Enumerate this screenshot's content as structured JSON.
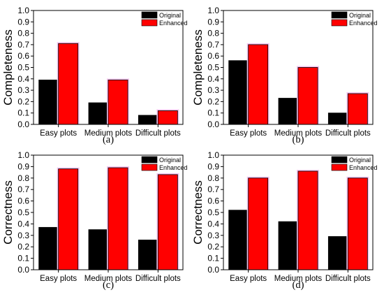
{
  "chart_data": [
    {
      "type": "bar",
      "caption": "(a)",
      "ylabel": "Completeness",
      "ylim": [
        0,
        1.0
      ],
      "yticks": [
        "0.0",
        "0.1",
        "0.2",
        "0.3",
        "0.4",
        "0.5",
        "0.6",
        "0.7",
        "0.8",
        "0.9",
        "1.0"
      ],
      "categories": [
        "Easy plots",
        "Medium plots",
        "Difficult plots"
      ],
      "series": [
        {
          "name": "Original",
          "color": "#000000",
          "values": [
            0.39,
            0.19,
            0.08
          ]
        },
        {
          "name": "Enhanced",
          "color": "#ff0000",
          "values": [
            0.71,
            0.39,
            0.12
          ]
        }
      ],
      "legend": "top-right",
      "grid": false
    },
    {
      "type": "bar",
      "caption": "(b)",
      "ylabel": "Completeness",
      "ylim": [
        0,
        1.0
      ],
      "yticks": [
        "0.0",
        "0.1",
        "0.2",
        "0.3",
        "0.4",
        "0.5",
        "0.6",
        "0.7",
        "0.8",
        "0.9",
        "1.0"
      ],
      "categories": [
        "Easy plots",
        "Medium plots",
        "Difficult plots"
      ],
      "series": [
        {
          "name": "Original",
          "color": "#000000",
          "values": [
            0.56,
            0.23,
            0.1
          ]
        },
        {
          "name": "Enhanced",
          "color": "#ff0000",
          "values": [
            0.7,
            0.5,
            0.27
          ]
        }
      ],
      "legend": "top-right",
      "grid": false
    },
    {
      "type": "bar",
      "caption": "(c)",
      "ylabel": "Correctness",
      "ylim": [
        0,
        1.0
      ],
      "yticks": [
        "0.0",
        "0.1",
        "0.2",
        "0.3",
        "0.4",
        "0.5",
        "0.6",
        "0.7",
        "0.8",
        "0.9",
        "1.0"
      ],
      "categories": [
        "Easy plots",
        "Medium plots",
        "Difficult plots"
      ],
      "series": [
        {
          "name": "Original",
          "color": "#000000",
          "values": [
            0.37,
            0.35,
            0.26
          ]
        },
        {
          "name": "Enhanced",
          "color": "#ff0000",
          "values": [
            0.88,
            0.89,
            0.83
          ]
        }
      ],
      "legend": "top-right",
      "grid": false
    },
    {
      "type": "bar",
      "caption": "(d)",
      "ylabel": "Correctness",
      "ylim": [
        0,
        1.0
      ],
      "yticks": [
        "0.0",
        "0.1",
        "0.2",
        "0.3",
        "0.4",
        "0.5",
        "0.6",
        "0.7",
        "0.8",
        "0.9",
        "1.0"
      ],
      "categories": [
        "Easy plots",
        "Medium plots",
        "Difficult plots"
      ],
      "series": [
        {
          "name": "Original",
          "color": "#000000",
          "values": [
            0.52,
            0.42,
            0.29
          ]
        },
        {
          "name": "Enhanced",
          "color": "#ff0000",
          "values": [
            0.8,
            0.86,
            0.8
          ]
        }
      ],
      "legend": "top-right",
      "grid": false
    }
  ]
}
